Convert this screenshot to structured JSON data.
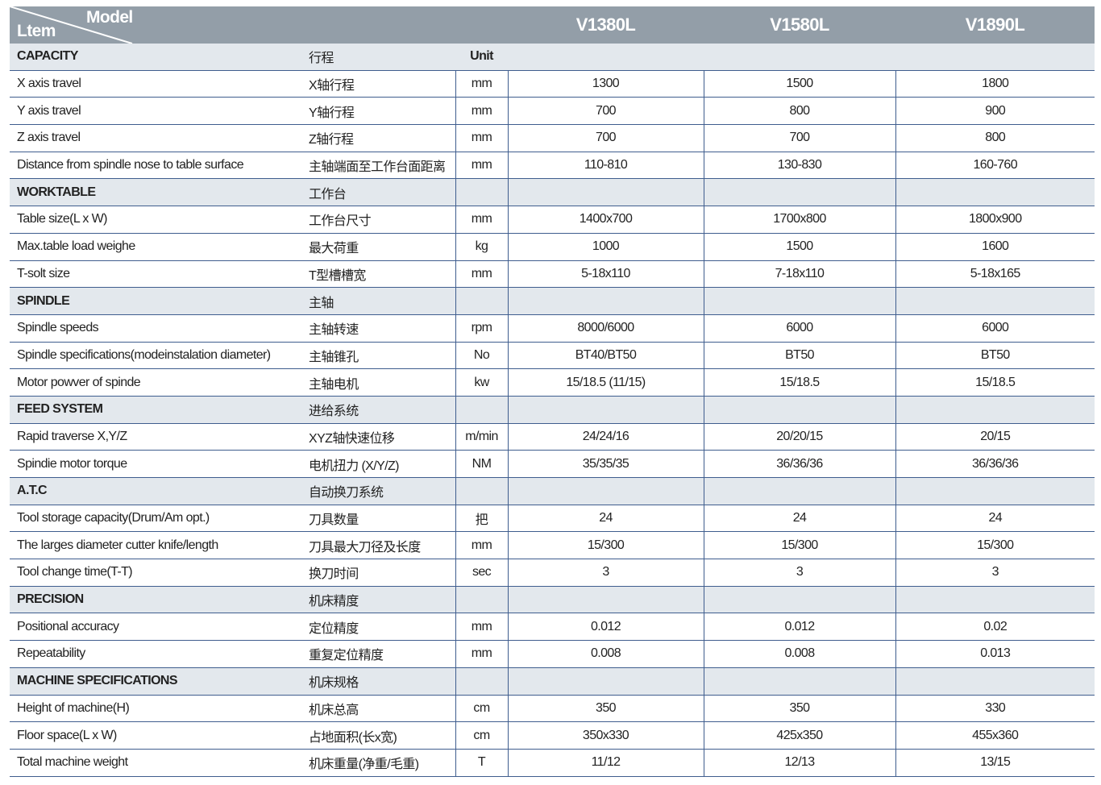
{
  "header": {
    "item_label": "Ltem",
    "model_label": "Model",
    "models": [
      "V1380L",
      "V1580L",
      "V1890L"
    ]
  },
  "rows": [
    {
      "type": "section",
      "en": "CAPACITY",
      "cn": "行程",
      "unit": "Unit",
      "values": [
        "",
        "",
        ""
      ]
    },
    {
      "type": "data",
      "en": "X axis travel",
      "cn": "X轴行程",
      "unit": "mm",
      "values": [
        "1300",
        "1500",
        "1800"
      ]
    },
    {
      "type": "data",
      "en": "Y axis travel",
      "cn": "Y轴行程",
      "unit": "mm",
      "values": [
        "700",
        "800",
        "900"
      ]
    },
    {
      "type": "data",
      "en": "Z axis travel",
      "cn": "Z轴行程",
      "unit": "mm",
      "values": [
        "700",
        "700",
        "800"
      ]
    },
    {
      "type": "data",
      "en": "Distance from spindle nose to table surface",
      "cn": "主轴端面至工作台面距离",
      "unit": "mm",
      "values": [
        "110-810",
        "130-830",
        "160-760"
      ]
    },
    {
      "type": "section",
      "en": "WORKTABLE",
      "cn": "工作台",
      "unit": "",
      "values": [
        "",
        "",
        ""
      ]
    },
    {
      "type": "data",
      "en": "Table size(L x W)",
      "cn": "工作台尺寸",
      "unit": "mm",
      "values": [
        "1400x700",
        "1700x800",
        "1800x900"
      ]
    },
    {
      "type": "data",
      "en": "Max.table load weighe",
      "cn": "最大荷重",
      "unit": "kg",
      "values": [
        "1000",
        "1500",
        "1600"
      ]
    },
    {
      "type": "data",
      "en": "T-solt size",
      "cn": "T型槽槽宽",
      "unit": "mm",
      "values": [
        "5-18x110",
        "7-18x110",
        "5-18x165"
      ]
    },
    {
      "type": "section",
      "en": "SPINDLE",
      "cn": "主轴",
      "unit": "",
      "values": [
        "",
        "",
        ""
      ]
    },
    {
      "type": "data",
      "en": "Spindle speeds",
      "cn": "主轴转速",
      "unit": "rpm",
      "values": [
        "8000/6000",
        "6000",
        "6000"
      ]
    },
    {
      "type": "data",
      "en": "Spindle specifications(modeinstalation diameter)",
      "cn": "主轴锥孔",
      "unit": "No",
      "values": [
        "BT40/BT50",
        "BT50",
        "BT50"
      ]
    },
    {
      "type": "data",
      "en": "Motor powver of spinde",
      "cn": "主轴电机",
      "unit": "kw",
      "values": [
        "15/18.5 (11/15)",
        "15/18.5",
        "15/18.5"
      ]
    },
    {
      "type": "section",
      "en": "FEED SYSTEM",
      "cn": "进给系统",
      "unit": "",
      "values": [
        "",
        "",
        ""
      ]
    },
    {
      "type": "data",
      "en": "Rapid traverse X,Y/Z",
      "cn": "XYZ轴快速位移",
      "unit": "m/min",
      "values": [
        "24/24/16",
        "20/20/15",
        "20/15"
      ]
    },
    {
      "type": "data",
      "en": "Spindie motor torque",
      "cn": "电机扭力 (X/Y/Z)",
      "unit": "NM",
      "values": [
        "35/35/35",
        "36/36/36",
        "36/36/36"
      ]
    },
    {
      "type": "section",
      "en": "A.T.C",
      "cn": "自动换刀系统",
      "unit": "",
      "values": [
        "",
        "",
        ""
      ]
    },
    {
      "type": "data",
      "en": "Tool storage capacity(Drum/Am opt.)",
      "cn": "刀具数量",
      "unit": "把",
      "values": [
        "24",
        "24",
        "24"
      ]
    },
    {
      "type": "data",
      "en": "The larges diameter cutter knife/length",
      "cn": "刀具最大刀径及长度",
      "unit": "mm",
      "values": [
        "15/300",
        "15/300",
        "15/300"
      ]
    },
    {
      "type": "data",
      "en": "Tool change time(T-T)",
      "cn": "换刀时间",
      "unit": "sec",
      "values": [
        "3",
        "3",
        "3"
      ]
    },
    {
      "type": "section",
      "en": "PRECISION",
      "cn": "机床精度",
      "unit": "",
      "values": [
        "",
        "",
        ""
      ]
    },
    {
      "type": "data",
      "en": "Positional accuracy",
      "cn": "定位精度",
      "unit": "mm",
      "values": [
        "0.012",
        "0.012",
        "0.02"
      ]
    },
    {
      "type": "data",
      "en": "Repeatability",
      "cn": "重复定位精度",
      "unit": "mm",
      "values": [
        "0.008",
        "0.008",
        "0.013"
      ]
    },
    {
      "type": "section",
      "en": "MACHINE SPECIFICATIONS",
      "cn": "机床规格",
      "unit": "",
      "values": [
        "",
        "",
        ""
      ]
    },
    {
      "type": "data",
      "en": "Height of machine(H)",
      "cn": "机床总高",
      "unit": "cm",
      "values": [
        "350",
        "350",
        "330"
      ]
    },
    {
      "type": "data",
      "en": "Floor space(L x W)",
      "cn": "占地面积(长x宽)",
      "unit": "cm",
      "values": [
        "350x330",
        "425x350",
        "455x360"
      ]
    },
    {
      "type": "data",
      "en": "Total machine weight",
      "cn": "机床重量(净重/毛重)",
      "unit": "T",
      "values": [
        "11/12",
        "12/13",
        "13/15"
      ]
    }
  ]
}
